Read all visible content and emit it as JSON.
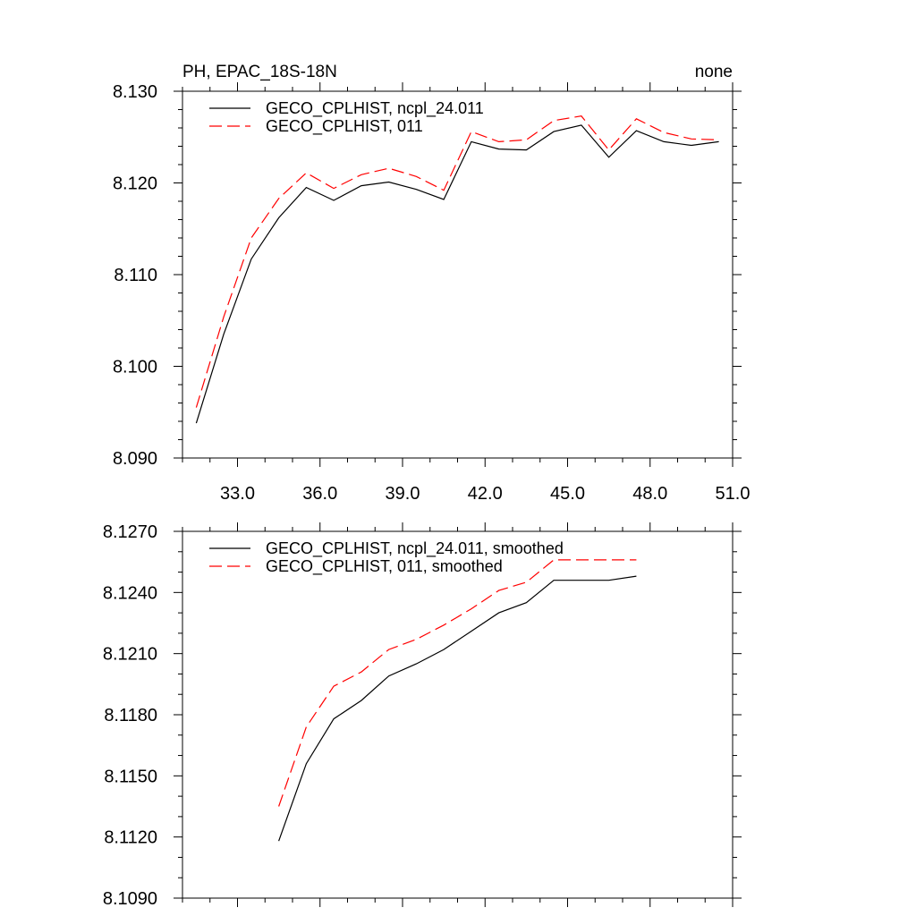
{
  "chart_data": [
    {
      "type": "line",
      "title": "PH, EPAC_18S-18N",
      "subtitle_right": "none",
      "xlabel": "",
      "ylabel": "",
      "xlim": [
        31.0,
        51.0
      ],
      "ylim": [
        8.09,
        8.13
      ],
      "x_ticks": [
        33.0,
        36.0,
        39.0,
        42.0,
        45.0,
        48.0,
        51.0
      ],
      "x_tick_labels": [
        "33.0",
        "36.0",
        "39.0",
        "42.0",
        "45.0",
        "48.0",
        "51.0"
      ],
      "y_ticks": [
        8.09,
        8.1,
        8.11,
        8.12,
        8.13
      ],
      "y_tick_labels": [
        "8.090",
        "8.100",
        "8.110",
        "8.120",
        "8.130"
      ],
      "grid": false,
      "legend_position": "top-left",
      "x": [
        31.5,
        32.5,
        33.5,
        34.5,
        35.5,
        36.5,
        37.5,
        38.5,
        39.5,
        40.5,
        41.5,
        42.5,
        43.5,
        44.5,
        45.5,
        46.5,
        47.5,
        48.5,
        49.5,
        50.5
      ],
      "series": [
        {
          "name": "GECO_CPLHIST, ncpl_24.011",
          "color": "#000000",
          "dash": "solid",
          "values": [
            8.0938,
            8.1035,
            8.1117,
            8.1162,
            8.1195,
            8.1181,
            8.1197,
            8.1201,
            8.1193,
            8.1182,
            8.1245,
            8.1237,
            8.1236,
            8.1256,
            8.1263,
            8.1228,
            8.1257,
            8.1245,
            8.1241,
            8.1245
          ]
        },
        {
          "name": "GECO_CPLHIST, 011",
          "color": "#ff0000",
          "dash": "dashed",
          "values": [
            8.0955,
            8.1054,
            8.114,
            8.1183,
            8.1211,
            8.1194,
            8.1209,
            8.1216,
            8.1207,
            8.1192,
            8.1256,
            8.1245,
            8.1247,
            8.1268,
            8.1273,
            8.1236,
            8.127,
            8.1255,
            8.1248,
            8.1247
          ]
        }
      ]
    },
    {
      "type": "line",
      "title": "",
      "xlabel": "",
      "ylabel": "",
      "xlim": [
        31.0,
        51.0
      ],
      "ylim": [
        8.109,
        8.127
      ],
      "x_ticks": [
        33.0,
        36.0,
        39.0,
        42.0,
        45.0,
        48.0,
        51.0
      ],
      "x_tick_labels": [],
      "y_ticks": [
        8.109,
        8.112,
        8.115,
        8.118,
        8.121,
        8.124,
        8.127
      ],
      "y_tick_labels": [
        "8.1090",
        "8.1120",
        "8.1150",
        "8.1180",
        "8.1210",
        "8.1240",
        "8.1270"
      ],
      "grid": false,
      "legend_position": "top-left",
      "x": [
        34.5,
        35.5,
        36.5,
        37.5,
        38.5,
        39.5,
        40.5,
        41.5,
        42.5,
        43.5,
        44.5,
        45.5,
        46.5,
        47.5
      ],
      "series": [
        {
          "name": "GECO_CPLHIST, ncpl_24.011, smoothed",
          "color": "#000000",
          "dash": "solid",
          "values": [
            8.1118,
            8.1156,
            8.1178,
            8.1187,
            8.1199,
            8.1205,
            8.1212,
            8.1221,
            8.123,
            8.1235,
            8.1246,
            8.1246,
            8.1246,
            8.1248
          ]
        },
        {
          "name": "GECO_CPLHIST, 011, smoothed",
          "color": "#ff0000",
          "dash": "dashed",
          "values": [
            8.1135,
            8.1174,
            8.1194,
            8.1201,
            8.1212,
            8.1217,
            8.1224,
            8.1232,
            8.1241,
            8.1245,
            8.1256,
            8.1256,
            8.1256,
            8.1256
          ]
        }
      ]
    }
  ]
}
